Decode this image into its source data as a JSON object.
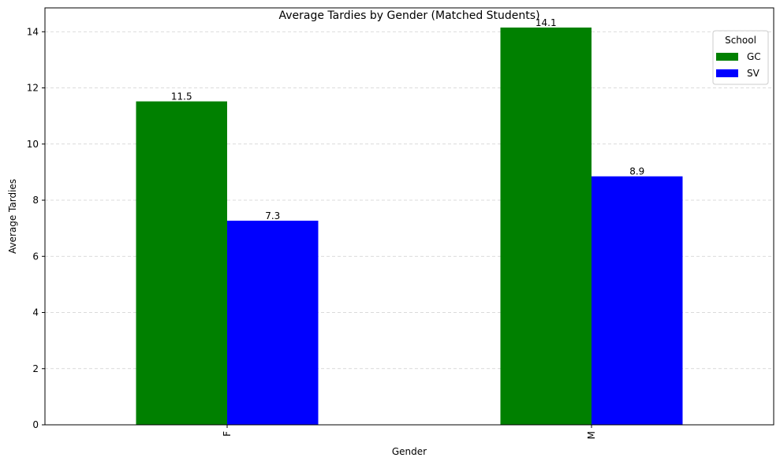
{
  "chart_data": {
    "type": "bar",
    "title": "Average Tardies by Gender (Matched Students)",
    "xlabel": "Gender",
    "ylabel": "Average Tardies",
    "categories": [
      "F",
      "M"
    ],
    "series": [
      {
        "name": "GC",
        "values": [
          11.52,
          14.15
        ],
        "labels": [
          "11.5",
          "14.1"
        ],
        "color": "#008000"
      },
      {
        "name": "SV",
        "values": [
          7.27,
          8.85
        ],
        "labels": [
          "7.3",
          "8.9"
        ],
        "color": "#0000ff"
      }
    ],
    "ylim": [
      0,
      14.85
    ],
    "yticks": [
      "0",
      "2",
      "4",
      "6",
      "8",
      "10",
      "12",
      "14"
    ],
    "grid": "y-dashed",
    "legend": {
      "title": "School",
      "position": "top-right"
    }
  }
}
